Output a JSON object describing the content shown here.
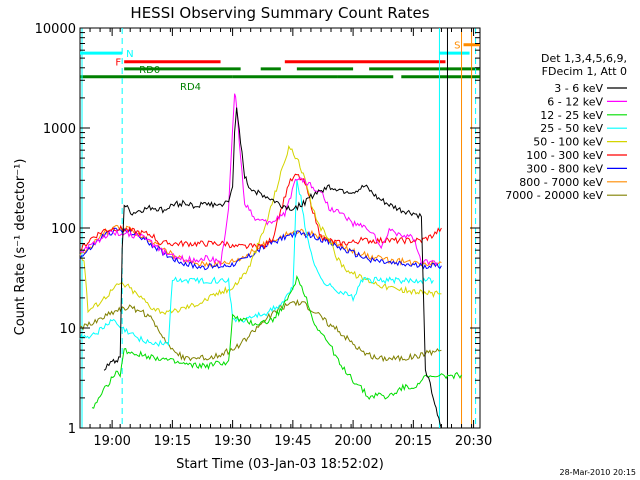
{
  "chart_data": {
    "type": "line",
    "title": "HESSI Observing Summary Count Rates",
    "xlabel": "Start Time (03-Jan-03 18:52:02)",
    "ylabel": "Count Rate (s⁻¹ detector⁻¹)",
    "x_unit": "minutes after 18:52:02",
    "xlim": [
      0,
      99.6
    ],
    "ylim": [
      1,
      10000
    ],
    "y_scale": "log",
    "x_ticks": [
      {
        "v": 8,
        "label": "19:00"
      },
      {
        "v": 23,
        "label": "19:15"
      },
      {
        "v": 38,
        "label": "19:30"
      },
      {
        "v": 53,
        "label": "19:45"
      },
      {
        "v": 68,
        "label": "20:00"
      },
      {
        "v": 83,
        "label": "20:15"
      },
      {
        "v": 98,
        "label": "20:30"
      }
    ],
    "y_ticks": [
      {
        "v": 1,
        "label": "1"
      },
      {
        "v": 10,
        "label": "10"
      },
      {
        "v": 100,
        "label": "100"
      },
      {
        "v": 1000,
        "label": "1000"
      },
      {
        "v": 10000,
        "label": "10000"
      }
    ],
    "legend": {
      "placement": "right",
      "header": [
        "Det 1,3,4,5,6,9,",
        "FDecim 1, Att 0"
      ],
      "entries": [
        {
          "label": "3 - 6 keV",
          "color": "#000000"
        },
        {
          "label": "6 - 12 keV",
          "color": "#ff00ff"
        },
        {
          "label": "12 - 25 keV",
          "color": "#00dd00"
        },
        {
          "label": "25 - 50 keV",
          "color": "#00ffff"
        },
        {
          "label": "50 - 100 keV",
          "color": "#d4d400"
        },
        {
          "label": "100 - 300 keV",
          "color": "#ff0000"
        },
        {
          "label": "300 - 800 keV",
          "color": "#0000ff"
        },
        {
          "label": "800 - 7000 keV",
          "color": "#ff8c00"
        },
        {
          "label": "7000 - 20000 keV",
          "color": "#808000"
        }
      ]
    },
    "flags": [
      {
        "label": "N",
        "color": "#00ffff",
        "value": 5600,
        "segments": [
          [
            0,
            10.5
          ],
          [
            89.5,
            97
          ]
        ]
      },
      {
        "label": "F",
        "color": "#ff0000",
        "value": 4600,
        "segments": [
          [
            11,
            35
          ],
          [
            51,
            91
          ]
        ]
      },
      {
        "label": "S",
        "color": "#ff8c00",
        "value": 6800,
        "segments": [
          [
            95.5,
            99.6
          ]
        ]
      },
      {
        "label": "RD0",
        "color": "#008000",
        "value": 3900,
        "segments": [
          [
            11,
            40
          ],
          [
            45,
            50
          ],
          [
            54,
            68
          ],
          [
            72,
            99.6
          ]
        ]
      },
      {
        "label": "RD4",
        "color": "#008000",
        "value": 3250,
        "segments": [
          [
            0,
            38
          ],
          [
            38,
            64
          ],
          [
            64,
            78
          ],
          [
            80,
            99.6
          ]
        ]
      }
    ],
    "series": [
      {
        "name": "3 - 6 keV",
        "color": "#000000",
        "x": [
          6,
          8,
          9,
          10,
          10.5,
          11,
          13,
          15,
          18,
          21,
          23,
          26,
          29,
          32,
          35,
          37,
          38,
          38.5,
          39,
          40,
          41,
          42,
          44,
          47,
          50,
          53,
          56,
          59,
          62,
          65,
          68,
          71,
          74,
          77,
          80,
          83,
          85,
          86,
          88,
          89,
          90
        ],
        "y": [
          4,
          4.8,
          4.5,
          5,
          60,
          170,
          140,
          150,
          160,
          150,
          170,
          180,
          165,
          175,
          170,
          180,
          260,
          950,
          1500,
          700,
          330,
          260,
          230,
          200,
          170,
          155,
          180,
          230,
          260,
          240,
          230,
          260,
          200,
          170,
          150,
          140,
          130,
          4,
          2,
          1.3,
          1
        ]
      },
      {
        "name": "6 - 12 keV",
        "color": "#ff00ff",
        "x": [
          0,
          3,
          6,
          8,
          10,
          11,
          13,
          16,
          20,
          24,
          28,
          32,
          35,
          37,
          38,
          38.5,
          39,
          40,
          41,
          44,
          47,
          51,
          54,
          57,
          58,
          60,
          62,
          65,
          68,
          71,
          73,
          75,
          77,
          80,
          83,
          85,
          86,
          89
        ],
        "y": [
          55,
          70,
          80,
          90,
          90,
          90,
          85,
          80,
          60,
          50,
          48,
          50,
          45,
          150,
          1000,
          2200,
          1700,
          500,
          180,
          120,
          110,
          140,
          320,
          280,
          250,
          230,
          160,
          140,
          110,
          100,
          90,
          60,
          95,
          85,
          80,
          45,
          45,
          45
        ]
      },
      {
        "name": "12 - 25 keV",
        "color": "#00dd00",
        "x": [
          3,
          5,
          7,
          9,
          10,
          11,
          14,
          20,
          24,
          28,
          32,
          35,
          37,
          38,
          40,
          44,
          48,
          52,
          54,
          56,
          58,
          60,
          62,
          64,
          65,
          67,
          68,
          70,
          72,
          74,
          76,
          78,
          80,
          83,
          86,
          88,
          90,
          95
        ],
        "y": [
          1.5,
          2,
          2.8,
          3.5,
          3.5,
          6,
          5.5,
          5,
          4.5,
          4.2,
          4.2,
          4.5,
          4.5,
          13,
          12,
          11,
          12,
          20,
          32,
          22,
          12,
          9,
          7,
          5,
          4,
          3.5,
          3,
          2.5,
          2,
          2.2,
          2,
          2.2,
          2.5,
          2.6,
          3.2,
          3.2,
          3.3,
          3.4
        ]
      },
      {
        "name": "25 - 50 keV",
        "color": "#00ffff",
        "x": [
          0,
          3,
          6,
          8,
          10,
          12,
          14,
          16,
          18,
          20,
          22,
          23,
          25,
          30,
          35,
          37,
          38,
          40,
          43,
          46,
          50,
          53,
          54,
          55,
          56,
          58,
          60,
          63,
          66,
          68,
          70,
          73,
          76,
          79,
          80,
          83,
          86,
          88
        ],
        "y": [
          8,
          8.5,
          10,
          12,
          10,
          9,
          8,
          7.5,
          7,
          7,
          7,
          30,
          30,
          30,
          30,
          30,
          12,
          12,
          13,
          14,
          17,
          25,
          300,
          200,
          100,
          50,
          30,
          25,
          22,
          20,
          30,
          30,
          30,
          30,
          30,
          30,
          30,
          30
        ]
      },
      {
        "name": "50 - 100 keV",
        "color": "#d4d400",
        "x": [
          0,
          1,
          2,
          4,
          6,
          8,
          10,
          12,
          14,
          16,
          18,
          20,
          22,
          24,
          26,
          30,
          34,
          38,
          42,
          46,
          50,
          52,
          54,
          56,
          58,
          60,
          62,
          64,
          66,
          68,
          70,
          72,
          74,
          76,
          78,
          80,
          84,
          88,
          90
        ],
        "y": [
          50,
          50,
          15,
          17,
          20,
          24,
          28,
          26,
          22,
          19,
          16,
          15,
          14,
          15,
          16,
          18,
          22,
          25,
          40,
          100,
          350,
          650,
          500,
          300,
          150,
          100,
          80,
          50,
          40,
          35,
          32,
          30,
          28,
          26,
          25,
          24,
          23,
          22,
          22
        ]
      },
      {
        "name": "100 - 300 keV",
        "color": "#ff0000",
        "x": [
          0,
          3,
          6,
          9,
          12,
          15,
          18,
          20,
          23,
          26,
          29,
          32,
          35,
          37,
          38,
          40,
          43,
          46,
          48,
          50,
          52,
          54,
          56,
          58,
          60,
          62,
          65,
          68,
          70,
          73,
          76,
          79,
          82,
          85,
          88,
          90
        ],
        "y": [
          60,
          80,
          95,
          100,
          95,
          90,
          85,
          70,
          70,
          70,
          70,
          70,
          70,
          70,
          65,
          65,
          65,
          66,
          80,
          150,
          280,
          340,
          280,
          150,
          80,
          75,
          70,
          72,
          75,
          75,
          75,
          75,
          75,
          75,
          85,
          100
        ]
      },
      {
        "name": "300 - 800 keV",
        "color": "#0000ff",
        "x": [
          0,
          3,
          6,
          9,
          12,
          15,
          18,
          21,
          24,
          27,
          30,
          33,
          36,
          39,
          42,
          45,
          48,
          51,
          54,
          57,
          60,
          63,
          66,
          69,
          72,
          75,
          78,
          81,
          84,
          87,
          90
        ],
        "y": [
          50,
          65,
          85,
          95,
          92,
          82,
          68,
          56,
          48,
          43,
          41,
          41,
          42,
          45,
          52,
          62,
          72,
          82,
          88,
          85,
          78,
          68,
          60,
          54,
          49,
          46,
          44,
          43,
          42,
          42,
          42
        ]
      },
      {
        "name": "800 - 7000 keV",
        "color": "#ff8c00",
        "x": [
          0,
          3,
          6,
          9,
          12,
          15,
          18,
          21,
          24,
          27,
          30,
          33,
          36,
          39,
          42,
          45,
          48,
          51,
          54,
          57,
          60,
          63,
          66,
          69,
          72,
          75,
          78,
          81,
          84,
          87,
          90
        ],
        "y": [
          52,
          68,
          90,
          100,
          97,
          86,
          72,
          60,
          51,
          46,
          44,
          44,
          45,
          48,
          55,
          65,
          76,
          86,
          92,
          89,
          82,
          72,
          63,
          57,
          52,
          49,
          47,
          46,
          45,
          45,
          45
        ]
      },
      {
        "name": "7000 - 20000 keV",
        "color": "#808000",
        "x": [
          0,
          3,
          6,
          9,
          12,
          15,
          18,
          21,
          23,
          26,
          29,
          32,
          35,
          38,
          41,
          44,
          47,
          50,
          53,
          56,
          59,
          62,
          65,
          68,
          71,
          74,
          77,
          80,
          83,
          86,
          89,
          90
        ],
        "y": [
          10,
          11,
          13,
          15,
          16,
          15,
          12,
          8,
          6,
          5,
          5,
          5,
          5.5,
          6,
          7.5,
          10,
          13,
          16,
          18,
          17,
          14,
          11,
          9,
          7,
          5.5,
          5,
          5,
          5,
          5.2,
          5.5,
          6,
          6
        ]
      }
    ],
    "vlines": [
      {
        "x": 10.5,
        "color": "#00ffff",
        "dash": true
      },
      {
        "x": 89.5,
        "color": "#00ffff",
        "dash": false
      },
      {
        "x": 91.5,
        "color": "#000000",
        "dash": false
      },
      {
        "x": 95,
        "color": "#ff8c00",
        "dash": false
      },
      {
        "x": 97.5,
        "color": "#ff8c00",
        "dash": false
      },
      {
        "x": 98.5,
        "color": "#00ffff",
        "dash": true
      },
      {
        "x": 0.5,
        "color": "#00ffff",
        "dash": false
      }
    ]
  },
  "footer": {
    "timestamp": "28-Mar-2010 20:15"
  }
}
